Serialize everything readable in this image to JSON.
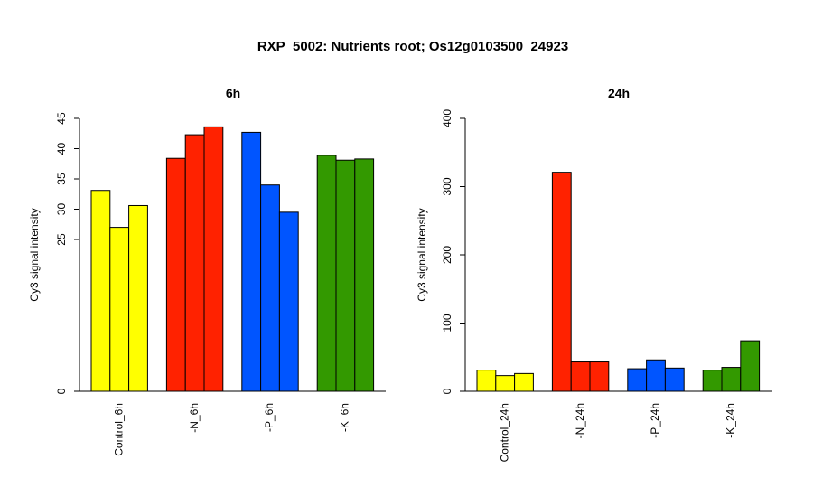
{
  "title": "RXP_5002: Nutrients root; Os12g0103500_24923",
  "chart_data": [
    {
      "type": "bar",
      "title": "6h",
      "ylabel": "Cy3 signal intensity",
      "ylim": [
        0,
        45
      ],
      "yticks": [
        0,
        25,
        30,
        35,
        40,
        45
      ],
      "y_scale": "nonlinear (gapped axis between 0 and 25)",
      "categories": [
        "Control_6h",
        "-N_6h",
        "-P_6h",
        "-K_6h"
      ],
      "group_colors": [
        "#ffff00",
        "#ff2200",
        "#0055ff",
        "#339900"
      ],
      "values": [
        [
          33.1,
          27.0,
          30.6
        ],
        [
          38.4,
          42.3,
          43.6
        ],
        [
          42.7,
          34.0,
          29.5
        ],
        [
          38.9,
          38.1,
          38.3
        ]
      ]
    },
    {
      "type": "bar",
      "title": "24h",
      "ylabel": "Cy3 signal intensity",
      "ylim": [
        0,
        400
      ],
      "yticks": [
        0,
        100,
        200,
        300,
        400
      ],
      "categories": [
        "Control_24h",
        "-N_24h",
        "-P_24h",
        "-K_24h"
      ],
      "group_colors": [
        "#ffff00",
        "#ff2200",
        "#0055ff",
        "#339900"
      ],
      "values": [
        [
          31,
          23,
          26
        ],
        [
          321,
          43,
          43
        ],
        [
          33,
          46,
          34
        ],
        [
          31,
          35,
          74
        ]
      ]
    }
  ]
}
